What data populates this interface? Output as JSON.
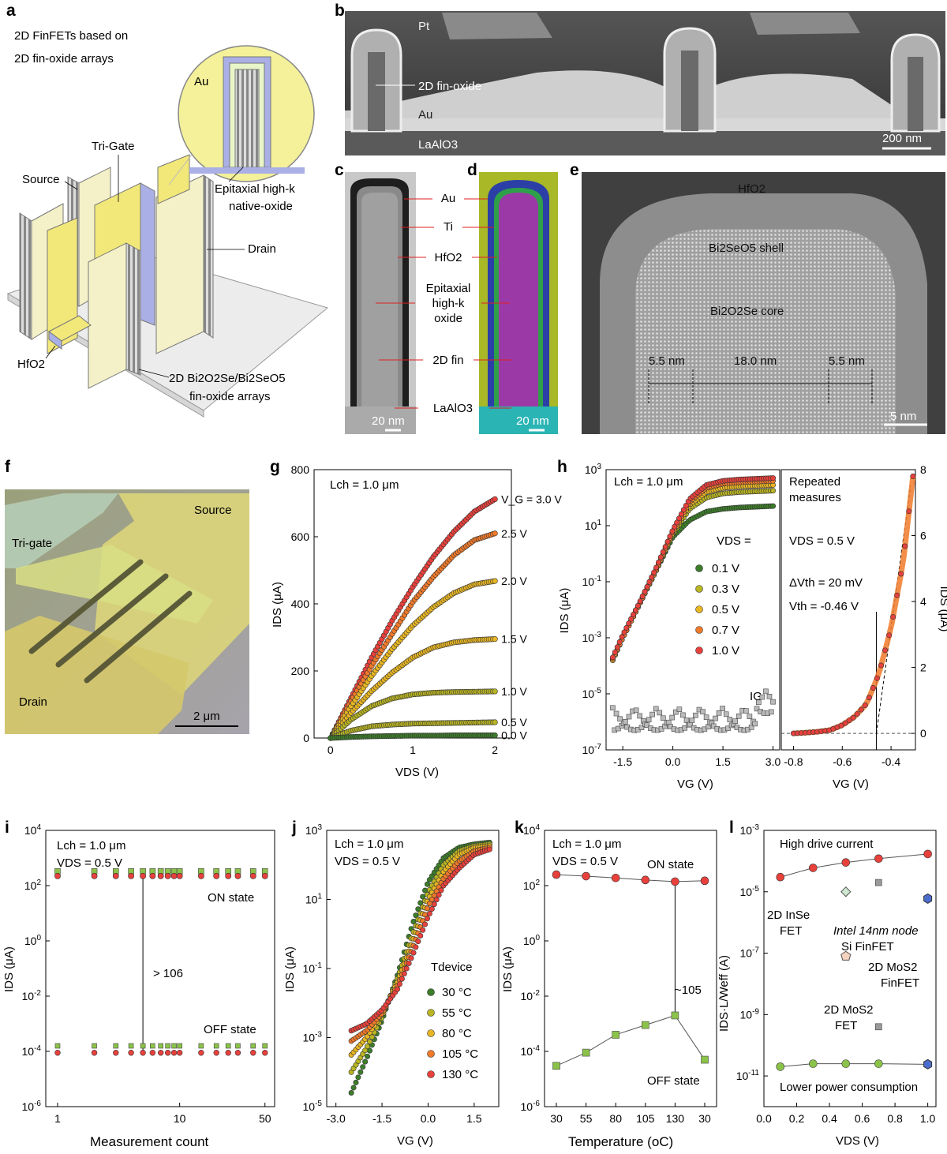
{
  "panel_labels": [
    "a",
    "b",
    "c",
    "d",
    "e",
    "f",
    "g",
    "h",
    "i",
    "j",
    "k",
    "l"
  ],
  "panel_a": {
    "title_line1": "2D FinFETs based on",
    "title_line2": "2D fin-oxide arrays",
    "inset_label": "Au",
    "epi_line1": "Epitaxial high-k",
    "epi_line2": "native-oxide",
    "tri_gate": "Tri-Gate",
    "source": "Source",
    "drain": "Drain",
    "hfo2": "HfO2",
    "arrays_line1": "2D Bi2O2Se/Bi2SeO5",
    "arrays_line2": "fin-oxide arrays"
  },
  "panel_b": {
    "pt": "Pt",
    "fin": "2D fin-oxide",
    "au": "Au",
    "laalo3": "LaAlO3",
    "scale": "200 nm"
  },
  "panel_cd": {
    "labels": [
      "Au",
      "Ti",
      "HfO2",
      "Epitaxial",
      "high-k",
      "oxide",
      "2D fin",
      "LaAlO3"
    ],
    "scale_c": "20 nm",
    "scale_d": "20 nm"
  },
  "panel_e": {
    "hfo2": "HfO2",
    "shell": "Bi2SeO5 shell",
    "core": "Bi2O2Se core",
    "w1": "5.5 nm",
    "w2": "18.0 nm",
    "w3": "5.5 nm",
    "scale": "5 nm"
  },
  "panel_f": {
    "source": "Source",
    "tri_gate": "Tri-gate",
    "drain": "Drain",
    "scale": "2 μm"
  },
  "colors": {
    "red": "#e8413c",
    "orange": "#f07a2a",
    "gold": "#e8b623",
    "olive": "#b9b523",
    "green": "#3d7d2a",
    "gray": "#bbbbbb",
    "lgreen": "#8bc34a",
    "blue": "#4b6ccd"
  },
  "chart_data": [
    {
      "panel": "g",
      "type": "line",
      "annotation": "Lch = 1.0 μm",
      "xlabel": "VDS (V)",
      "ylabel": "IDS (μA)",
      "xlim": [
        -0.2,
        2.2
      ],
      "ylim": [
        0,
        800
      ],
      "xticks": [
        0,
        1,
        2
      ],
      "yticks": [
        0,
        200,
        400,
        600,
        800
      ],
      "series": [
        {
          "name": "VG = 3.0 V",
          "label": "V_G = 3.0 V",
          "x": [
            0,
            0.25,
            0.5,
            0.75,
            1.0,
            1.25,
            1.5,
            1.75,
            2.0
          ],
          "values": [
            0,
            120,
            240,
            350,
            450,
            540,
            615,
            675,
            712
          ]
        },
        {
          "name": "2.5 V",
          "x": [
            0,
            0.25,
            0.5,
            0.75,
            1.0,
            1.25,
            1.5,
            1.75,
            2.0
          ],
          "values": [
            0,
            110,
            215,
            310,
            405,
            480,
            545,
            590,
            610
          ]
        },
        {
          "name": "2.0 V",
          "x": [
            0,
            0.25,
            0.5,
            0.75,
            1.0,
            1.25,
            1.5,
            1.75,
            2.0
          ],
          "values": [
            0,
            95,
            185,
            265,
            335,
            390,
            432,
            458,
            468
          ]
        },
        {
          "name": "1.5 V",
          "x": [
            0,
            0.25,
            0.5,
            0.75,
            1.0,
            1.25,
            1.5,
            1.75,
            2.0
          ],
          "values": [
            0,
            75,
            140,
            195,
            240,
            270,
            285,
            292,
            295
          ]
        },
        {
          "name": "1.0 V",
          "x": [
            0,
            0.25,
            0.5,
            0.75,
            1.0,
            1.25,
            1.5,
            1.75,
            2.0
          ],
          "values": [
            0,
            55,
            95,
            118,
            130,
            135,
            137,
            138,
            139
          ]
        },
        {
          "name": "0.5 V",
          "x": [
            0,
            0.25,
            0.5,
            0.75,
            1.0,
            1.25,
            1.5,
            1.75,
            2.0
          ],
          "values": [
            0,
            22,
            35,
            40,
            43,
            44,
            45,
            46,
            47
          ]
        },
        {
          "name": "0.0 V",
          "x": [
            0,
            0.25,
            0.5,
            0.75,
            1.0,
            1.25,
            1.5,
            1.75,
            2.0
          ],
          "values": [
            0,
            3,
            5,
            6,
            7,
            7,
            8,
            8,
            8
          ]
        }
      ]
    },
    {
      "panel": "h-left",
      "type": "line",
      "annotation": "Lch = 1.0 μm",
      "xlabel": "VG (V)",
      "ylabel": "IDS (μA)",
      "legend_title": "VDS =",
      "xlim": [
        -2.0,
        3.2
      ],
      "ylim_log10": [
        -7,
        3
      ],
      "xticks": [
        -1.5,
        0.0,
        1.5,
        3.0
      ],
      "yticks_log10": [
        -7,
        -5,
        -3,
        -1,
        1,
        3
      ],
      "ytick_labels": [
        "10-7",
        "10-5",
        "10-3",
        "10-1",
        "101",
        "103"
      ],
      "ig_label": "IG",
      "series": [
        {
          "name": "0.1 V",
          "x": [
            -1.8,
            -1.5,
            -1.0,
            -0.5,
            0.0,
            0.5,
            1.0,
            1.5,
            2.0,
            3.0
          ],
          "log10_values": [
            -3.8,
            -3.0,
            -1.8,
            -0.6,
            0.6,
            1.2,
            1.5,
            1.6,
            1.65,
            1.7
          ]
        },
        {
          "name": "0.3 V",
          "x": [
            -1.8,
            -1.5,
            -1.0,
            -0.5,
            0.0,
            0.5,
            1.0,
            1.5,
            2.0,
            3.0
          ],
          "log10_values": [
            -3.8,
            -3.0,
            -1.8,
            -0.6,
            0.7,
            1.6,
            2.0,
            2.15,
            2.2,
            2.25
          ]
        },
        {
          "name": "0.5 V",
          "x": [
            -1.8,
            -1.5,
            -1.0,
            -0.5,
            0.0,
            0.5,
            1.0,
            1.5,
            2.0,
            3.0
          ],
          "log10_values": [
            -3.8,
            -3.0,
            -1.8,
            -0.6,
            0.75,
            1.75,
            2.2,
            2.35,
            2.4,
            2.45
          ]
        },
        {
          "name": "0.7 V",
          "x": [
            -1.8,
            -1.5,
            -1.0,
            -0.5,
            0.0,
            0.5,
            1.0,
            1.5,
            2.0,
            3.0
          ],
          "log10_values": [
            -3.75,
            -3.0,
            -1.8,
            -0.55,
            0.8,
            1.85,
            2.35,
            2.5,
            2.55,
            2.6
          ]
        },
        {
          "name": "1.0 V",
          "x": [
            -1.8,
            -1.5,
            -1.0,
            -0.5,
            0.0,
            0.5,
            1.0,
            1.5,
            2.0,
            3.0
          ],
          "log10_values": [
            -3.7,
            -2.9,
            -1.75,
            -0.5,
            0.85,
            1.95,
            2.45,
            2.6,
            2.65,
            2.7
          ]
        }
      ]
    },
    {
      "panel": "h-right",
      "type": "line",
      "annotations": [
        "Repeated",
        "measures",
        "VDS = 0.5 V",
        "ΔVth = 20 mV",
        "Vth = -0.46 V"
      ],
      "xlabel": "VG (V)",
      "ylabel": "IDS (μA)",
      "xlim": [
        -0.85,
        -0.3
      ],
      "ylim": [
        -0.5,
        8
      ],
      "xticks": [
        -0.8,
        -0.6,
        -0.4
      ],
      "yticks": [
        0,
        2,
        4,
        6,
        8
      ],
      "series": [
        {
          "name": "repeated",
          "x": [
            -0.8,
            -0.75,
            -0.7,
            -0.65,
            -0.6,
            -0.55,
            -0.5,
            -0.45,
            -0.4,
            -0.35,
            -0.31
          ],
          "values": [
            0.0,
            0.02,
            0.05,
            0.1,
            0.25,
            0.5,
            0.9,
            1.8,
            3.2,
            5.2,
            7.8
          ]
        }
      ]
    },
    {
      "panel": "i",
      "type": "scatter",
      "annotations": [
        "Lch = 1.0 μm",
        "VDS = 0.5 V",
        "ON state",
        "OFF state",
        "> 106"
      ],
      "xlabel": "Measurement count",
      "ylabel": "IDS (μA)",
      "xscale": "log",
      "xlim": [
        0.8,
        60
      ],
      "ylim_log10": [
        -6,
        4
      ],
      "xticks": [
        1,
        10,
        50
      ],
      "yticks_log10": [
        -6,
        -4,
        -2,
        0,
        2,
        4
      ],
      "ytick_labels": [
        "10-6",
        "10-4",
        "10-2",
        "100",
        "102",
        "104"
      ],
      "on_state_uA": 250,
      "off_state_uA": 0.0001,
      "count": [
        1,
        2,
        3,
        4,
        5,
        6,
        7,
        8,
        9,
        10,
        15,
        20,
        25,
        30,
        40,
        50
      ]
    },
    {
      "panel": "j",
      "type": "line",
      "annotations": [
        "Lch = 1.0 μm",
        "VDS = 0.5 V"
      ],
      "legend_title": "Tdevice",
      "xlabel": "VG (V)",
      "ylabel": "IDS (μA)",
      "xlim": [
        -3.3,
        2.3
      ],
      "ylim_log10": [
        -5,
        3
      ],
      "xticks": [
        -3.0,
        -1.5,
        0.0,
        1.5
      ],
      "yticks_log10": [
        -5,
        -3,
        -1,
        1,
        3
      ],
      "ytick_labels": [
        "10-5",
        "10-3",
        "10-1",
        "101",
        "103"
      ],
      "series": [
        {
          "name": "30 °C",
          "x": [
            -2.5,
            -2.0,
            -1.5,
            -1.0,
            -0.5,
            0.0,
            0.5,
            1.0,
            1.5,
            2.0
          ],
          "log10_values": [
            -4.6,
            -3.6,
            -2.5,
            -1.2,
            0.3,
            1.5,
            2.2,
            2.5,
            2.6,
            2.65
          ]
        },
        {
          "name": "55 °C",
          "x": [
            -2.5,
            -2.0,
            -1.5,
            -1.0,
            -0.5,
            0.0,
            0.5,
            1.0,
            1.5,
            2.0
          ],
          "log10_values": [
            -4.0,
            -3.3,
            -2.4,
            -1.3,
            0.0,
            1.2,
            2.0,
            2.4,
            2.55,
            2.6
          ]
        },
        {
          "name": "80 °C",
          "x": [
            -2.5,
            -2.0,
            -1.5,
            -1.0,
            -0.5,
            0.0,
            0.5,
            1.0,
            1.5,
            2.0
          ],
          "log10_values": [
            -3.5,
            -3.0,
            -2.3,
            -1.4,
            -0.2,
            1.0,
            1.8,
            2.3,
            2.5,
            2.55
          ]
        },
        {
          "name": "105 °C",
          "x": [
            -2.5,
            -2.0,
            -1.5,
            -1.0,
            -0.5,
            0.0,
            0.5,
            1.0,
            1.5,
            2.0
          ],
          "log10_values": [
            -3.1,
            -2.8,
            -2.3,
            -1.5,
            -0.4,
            0.8,
            1.6,
            2.1,
            2.4,
            2.5
          ]
        },
        {
          "name": "130 °C",
          "x": [
            -2.5,
            -2.0,
            -1.5,
            -1.0,
            -0.5,
            0.0,
            0.5,
            1.0,
            1.5,
            2.0
          ],
          "log10_values": [
            -2.8,
            -2.6,
            -2.2,
            -1.6,
            -0.6,
            0.5,
            1.4,
            1.9,
            2.3,
            2.45
          ]
        }
      ]
    },
    {
      "panel": "k",
      "type": "line",
      "annotations": [
        "Lch = 1.0 μm",
        "VDS = 0.5 V",
        "ON state",
        "OFF state",
        "~105"
      ],
      "xlabel": "Temperature (oC)",
      "ylabel": "IDS (μA)",
      "categories": [
        "30",
        "55",
        "80",
        "105",
        "130",
        "30"
      ],
      "ylim_log10": [
        -6,
        4
      ],
      "yticks_log10": [
        -6,
        -4,
        -2,
        0,
        2,
        4
      ],
      "ytick_labels": [
        "10-6",
        "10-4",
        "10-2",
        "100",
        "102",
        "104"
      ],
      "series": [
        {
          "name": "ON state",
          "values": [
            250,
            220,
            190,
            160,
            140,
            150
          ]
        },
        {
          "name": "OFF state",
          "values": [
            3e-05,
            9e-05,
            0.0004,
            0.0009,
            0.002,
            5e-05
          ]
        }
      ]
    },
    {
      "panel": "l",
      "type": "scatter",
      "annotations": [
        "High drive current",
        "Lower power consumption",
        "2D InSe",
        "FET",
        "Intel 14nm node",
        "Si FinFET",
        "2D MoS2",
        "FinFET",
        "2D MoS2",
        "FET"
      ],
      "xlabel": "VDS (V)",
      "ylabel": "IDS·L/Weff (A)",
      "xlim": [
        0.0,
        1.05
      ],
      "ylim_log10": [
        -12,
        -3
      ],
      "xticks": [
        0.0,
        0.2,
        0.4,
        0.6,
        0.8,
        1.0
      ],
      "yticks_log10": [
        -11,
        -9,
        -7,
        -5,
        -3
      ],
      "ytick_labels": [
        "10-11",
        "10-9",
        "10-7",
        "10-5",
        "10-3"
      ],
      "series": [
        {
          "name": "ON",
          "x": [
            0.1,
            0.3,
            0.5,
            0.7,
            1.0
          ],
          "values": [
            3e-05,
            6e-05,
            9e-05,
            0.00012,
            0.00017
          ]
        },
        {
          "name": "OFF",
          "x": [
            0.1,
            0.3,
            0.5,
            0.7,
            1.0
          ],
          "values": [
            2e-11,
            2.5e-11,
            2.5e-11,
            2.5e-11,
            2.4e-11
          ]
        },
        {
          "name": "2D InSe FET",
          "x": [
            0.5
          ],
          "values": [
            1e-05
          ]
        },
        {
          "name": "Intel 14nm node Si FinFET",
          "x": [
            0.7,
            0.7
          ],
          "values": [
            2e-05,
            4e-10
          ]
        },
        {
          "name": "2D MoS2 FinFET",
          "x": [
            1.0,
            1.0
          ],
          "values": [
            6e-06,
            2.4e-11
          ]
        },
        {
          "name": "2D MoS2 FET",
          "x": [
            0.5
          ],
          "values": [
            8e-08
          ]
        }
      ]
    }
  ]
}
